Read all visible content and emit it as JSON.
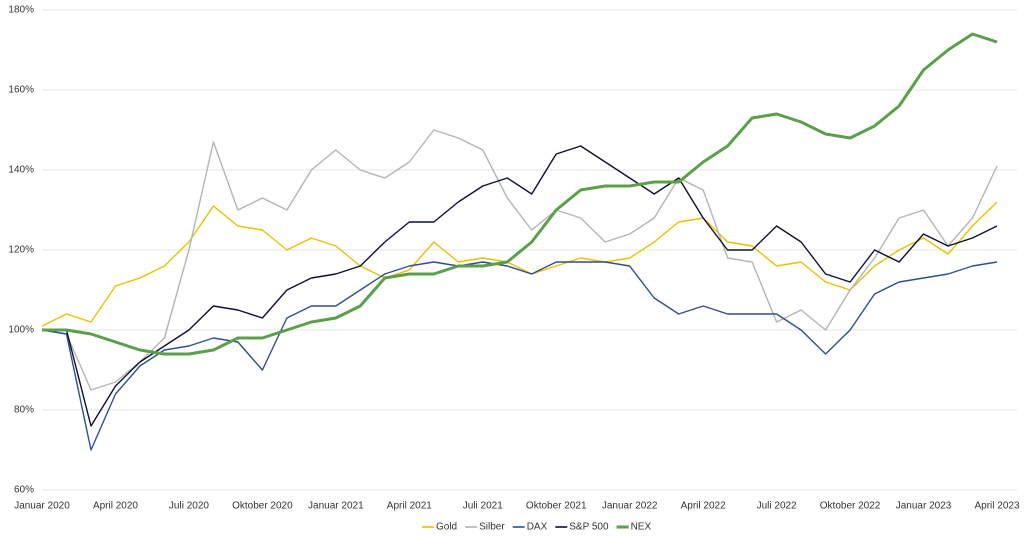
{
  "chart_data": {
    "type": "line",
    "categories": [
      "Januar 2020",
      null,
      null,
      "April 2020",
      null,
      null,
      "Juli 2020",
      null,
      null,
      "Oktober 2020",
      null,
      null,
      "Januar 2021",
      null,
      null,
      "April 2021",
      null,
      null,
      "Juli 2021",
      null,
      null,
      "Oktober 2021",
      null,
      null,
      "Januar 2022",
      null,
      null,
      "April 2022",
      null,
      null,
      "Juli 2022",
      null,
      null,
      "Oktober 2022",
      null,
      null,
      "Januar 2023",
      null,
      null,
      "April 2023"
    ],
    "series": [
      {
        "name": "Gold",
        "color": "#e6c200",
        "values": [
          101,
          104,
          102,
          111,
          113,
          116,
          122,
          131,
          126,
          125,
          120,
          123,
          121,
          116,
          113,
          115,
          122,
          117,
          118,
          117,
          114,
          116,
          118,
          117,
          118,
          122,
          127,
          128,
          122,
          121,
          116,
          117,
          112,
          110,
          116,
          120,
          123,
          119,
          126,
          132
        ]
      },
      {
        "name": "Silber",
        "color": "#b4b4b4",
        "values": [
          100,
          99,
          85,
          87,
          92,
          98,
          120,
          147,
          130,
          133,
          130,
          140,
          145,
          140,
          138,
          142,
          150,
          148,
          145,
          133,
          125,
          130,
          128,
          122,
          124,
          128,
          138,
          135,
          118,
          117,
          102,
          105,
          100,
          110,
          118,
          128,
          130,
          121,
          128,
          141
        ]
      },
      {
        "name": "DAX",
        "color": "#2f4f8f",
        "values": [
          100,
          99,
          70,
          84,
          91,
          95,
          96,
          98,
          97,
          90,
          103,
          106,
          106,
          110,
          114,
          116,
          117,
          116,
          117,
          116,
          114,
          117,
          117,
          117,
          116,
          108,
          104,
          106,
          104,
          104,
          104,
          100,
          94,
          100,
          109,
          112,
          113,
          114,
          116,
          117
        ]
      },
      {
        "name": "S&P 500",
        "color": "#0d1033",
        "values": [
          100,
          100,
          76,
          86,
          92,
          96,
          100,
          106,
          105,
          103,
          110,
          113,
          114,
          116,
          122,
          127,
          127,
          132,
          136,
          138,
          134,
          144,
          146,
          142,
          138,
          134,
          138,
          128,
          120,
          120,
          126,
          122,
          114,
          112,
          120,
          117,
          124,
          121,
          123,
          126
        ]
      },
      {
        "name": "NEX",
        "color": "#5aa04a",
        "values": [
          100,
          100,
          99,
          97,
          95,
          94,
          94,
          95,
          98,
          98,
          100,
          102,
          103,
          106,
          113,
          114,
          114,
          116,
          116,
          117,
          122,
          130,
          135,
          136,
          136,
          137,
          137,
          142,
          146,
          153,
          154,
          152,
          149,
          148,
          151,
          156,
          165,
          170,
          174,
          172
        ]
      }
    ],
    "ylim": [
      60,
      180
    ],
    "yticks": [
      {
        "value": 60,
        "label": "60%"
      },
      {
        "value": 80,
        "label": "80%"
      },
      {
        "value": 100,
        "label": "100%"
      },
      {
        "value": 120,
        "label": "120%"
      },
      {
        "value": 140,
        "label": "140%"
      },
      {
        "value": 160,
        "label": "160%"
      },
      {
        "value": 180,
        "label": "180%"
      }
    ],
    "grid": true,
    "legend": "bottom"
  }
}
